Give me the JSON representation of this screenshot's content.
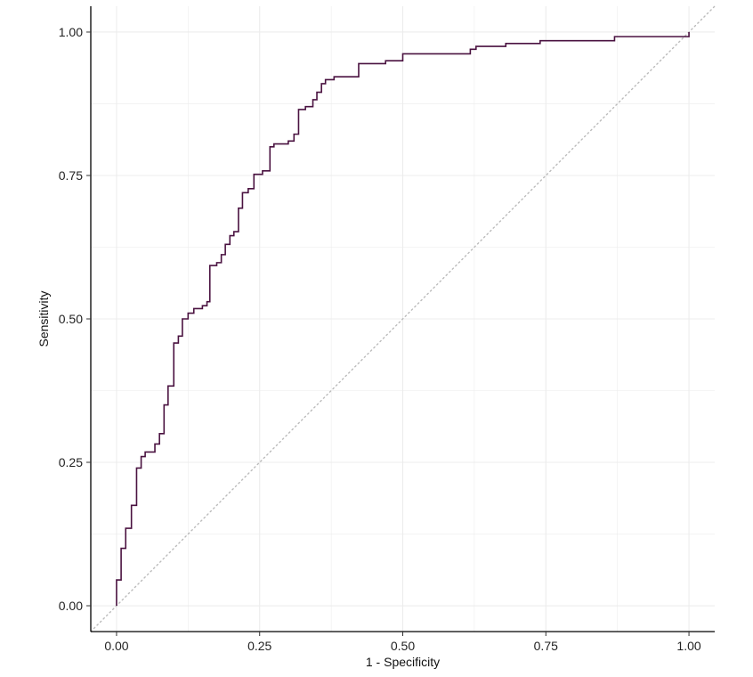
{
  "chart_data": {
    "type": "line",
    "title": "",
    "xlabel": "1 - Specificity",
    "ylabel": "Sensitivity",
    "xlim": [
      -0.045,
      1.045
    ],
    "ylim": [
      -0.045,
      1.045
    ],
    "x_ticks": [
      0.0,
      0.25,
      0.5,
      0.75,
      1.0
    ],
    "y_ticks": [
      0.0,
      0.25,
      0.5,
      0.75,
      1.0
    ],
    "x_tick_labels": [
      "0.00",
      "0.25",
      "0.50",
      "0.75",
      "1.00"
    ],
    "y_tick_labels": [
      "0.00",
      "0.25",
      "0.50",
      "0.75",
      "1.00"
    ],
    "grid": true,
    "legend": "none",
    "colors": {
      "roc": "#4a1240",
      "reference": "#bbbbbb",
      "grid": "#ececec",
      "axis": "#000000"
    },
    "series": [
      {
        "style": "step",
        "points": [
          [
            0.0,
            0.0
          ],
          [
            0.0,
            0.045
          ],
          [
            0.008,
            0.045
          ],
          [
            0.008,
            0.1
          ],
          [
            0.016,
            0.1
          ],
          [
            0.016,
            0.135
          ],
          [
            0.026,
            0.135
          ],
          [
            0.026,
            0.175
          ],
          [
            0.035,
            0.175
          ],
          [
            0.035,
            0.24
          ],
          [
            0.043,
            0.24
          ],
          [
            0.043,
            0.26
          ],
          [
            0.05,
            0.26
          ],
          [
            0.05,
            0.268
          ],
          [
            0.067,
            0.268
          ],
          [
            0.067,
            0.282
          ],
          [
            0.075,
            0.282
          ],
          [
            0.075,
            0.3
          ],
          [
            0.083,
            0.3
          ],
          [
            0.083,
            0.35
          ],
          [
            0.09,
            0.35
          ],
          [
            0.09,
            0.383
          ],
          [
            0.1,
            0.383
          ],
          [
            0.1,
            0.458
          ],
          [
            0.108,
            0.458
          ],
          [
            0.108,
            0.47
          ],
          [
            0.115,
            0.47
          ],
          [
            0.115,
            0.5
          ],
          [
            0.125,
            0.5
          ],
          [
            0.125,
            0.51
          ],
          [
            0.135,
            0.51
          ],
          [
            0.135,
            0.518
          ],
          [
            0.15,
            0.518
          ],
          [
            0.15,
            0.523
          ],
          [
            0.158,
            0.523
          ],
          [
            0.158,
            0.53
          ],
          [
            0.163,
            0.53
          ],
          [
            0.163,
            0.593
          ],
          [
            0.175,
            0.593
          ],
          [
            0.175,
            0.598
          ],
          [
            0.183,
            0.598
          ],
          [
            0.183,
            0.612
          ],
          [
            0.19,
            0.612
          ],
          [
            0.19,
            0.63
          ],
          [
            0.198,
            0.63
          ],
          [
            0.198,
            0.645
          ],
          [
            0.205,
            0.645
          ],
          [
            0.205,
            0.652
          ],
          [
            0.213,
            0.652
          ],
          [
            0.213,
            0.693
          ],
          [
            0.22,
            0.693
          ],
          [
            0.22,
            0.72
          ],
          [
            0.23,
            0.72
          ],
          [
            0.23,
            0.727
          ],
          [
            0.24,
            0.727
          ],
          [
            0.24,
            0.752
          ],
          [
            0.255,
            0.752
          ],
          [
            0.255,
            0.758
          ],
          [
            0.268,
            0.758
          ],
          [
            0.268,
            0.8
          ],
          [
            0.275,
            0.8
          ],
          [
            0.275,
            0.805
          ],
          [
            0.3,
            0.805
          ],
          [
            0.3,
            0.81
          ],
          [
            0.31,
            0.81
          ],
          [
            0.31,
            0.822
          ],
          [
            0.318,
            0.822
          ],
          [
            0.318,
            0.865
          ],
          [
            0.33,
            0.865
          ],
          [
            0.33,
            0.87
          ],
          [
            0.343,
            0.87
          ],
          [
            0.343,
            0.882
          ],
          [
            0.35,
            0.882
          ],
          [
            0.35,
            0.895
          ],
          [
            0.358,
            0.895
          ],
          [
            0.358,
            0.91
          ],
          [
            0.365,
            0.91
          ],
          [
            0.365,
            0.917
          ],
          [
            0.38,
            0.917
          ],
          [
            0.38,
            0.922
          ],
          [
            0.423,
            0.922
          ],
          [
            0.423,
            0.945
          ],
          [
            0.47,
            0.945
          ],
          [
            0.47,
            0.95
          ],
          [
            0.5,
            0.95
          ],
          [
            0.5,
            0.962
          ],
          [
            0.618,
            0.962
          ],
          [
            0.618,
            0.97
          ],
          [
            0.628,
            0.97
          ],
          [
            0.628,
            0.975
          ],
          [
            0.68,
            0.975
          ],
          [
            0.68,
            0.98
          ],
          [
            0.74,
            0.98
          ],
          [
            0.74,
            0.985
          ],
          [
            0.87,
            0.985
          ],
          [
            0.87,
            0.992
          ],
          [
            1.0,
            0.992
          ],
          [
            1.0,
            1.0
          ]
        ]
      }
    ],
    "reference_line": {
      "from": [
        -0.045,
        -0.045
      ],
      "to": [
        1.045,
        1.045
      ],
      "style": "dotted"
    }
  }
}
